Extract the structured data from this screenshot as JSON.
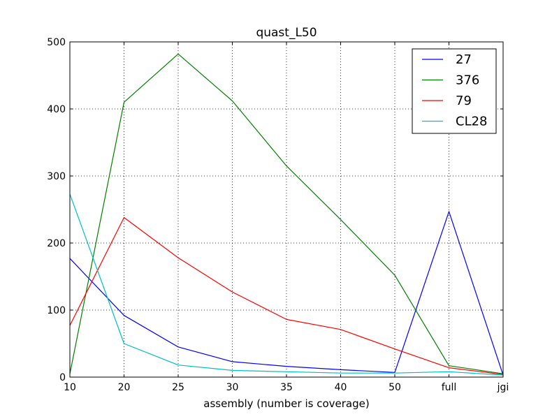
{
  "chart_data": {
    "type": "line",
    "title": "quast_L50",
    "xlabel": "assembly (number is coverage)",
    "ylabel": "",
    "categories": [
      "10",
      "20",
      "25",
      "30",
      "35",
      "40",
      "50",
      "full",
      "jgi"
    ],
    "yticks": [
      "0",
      "100",
      "200",
      "300",
      "400",
      "500"
    ],
    "ylim": [
      0,
      500
    ],
    "grid": true,
    "legend_position": "top-right",
    "series": [
      {
        "name": "27",
        "color": "#0000ff",
        "values": [
          177,
          92,
          45,
          23,
          16,
          11,
          7,
          247,
          3
        ]
      },
      {
        "name": "376",
        "color": "#008000",
        "values": [
          5,
          410,
          482,
          412,
          315,
          235,
          152,
          17,
          5
        ]
      },
      {
        "name": "79",
        "color": "#ff0000",
        "values": [
          77,
          238,
          178,
          127,
          86,
          71,
          42,
          14,
          4
        ]
      },
      {
        "name": "CL28",
        "color": "#00bfbf",
        "values": [
          273,
          50,
          18,
          10,
          8,
          6,
          6,
          8,
          3
        ]
      }
    ]
  }
}
